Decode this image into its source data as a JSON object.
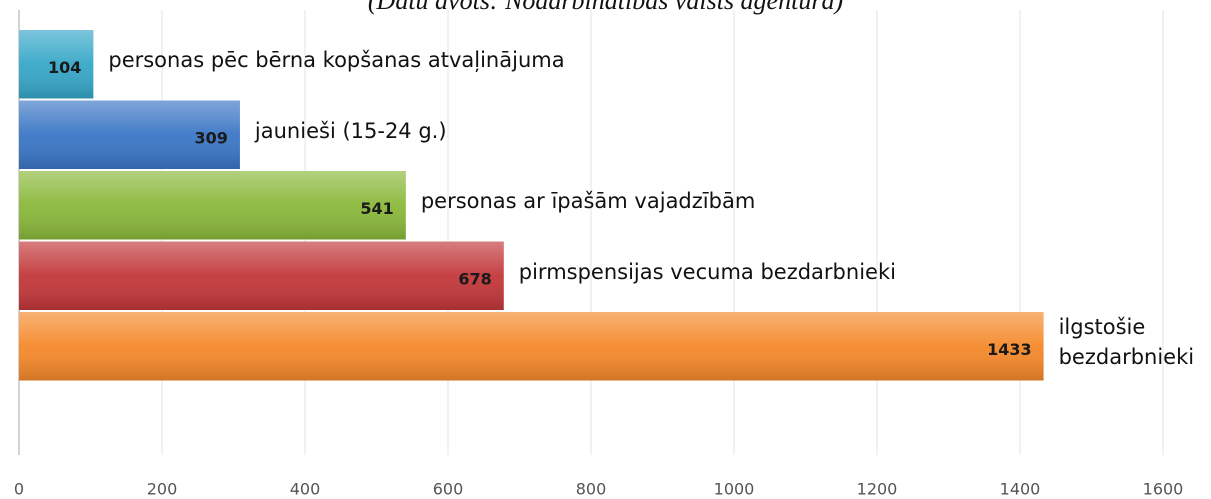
{
  "chart_data": {
    "type": "bar",
    "orientation": "horizontal",
    "subtitle": "(Datu avots: Nodarbinātības valsts aģentūra)",
    "categories": [
      "personas pēc bērna kopšanas atvaļinājuma",
      "jaunieši (15-24 g.)",
      "personas ar īpašām vajadzībām",
      "pirmspensijas vecuma bezdarbnieki",
      "ilgstošie bezdarbnieki"
    ],
    "values": [
      104,
      309,
      541,
      678,
      1433
    ],
    "colors": [
      "#36a7c8",
      "#3a76c6",
      "#8ab83a",
      "#c2373a",
      "#f5892a"
    ],
    "xlim": [
      0,
      1600
    ],
    "xticks": [
      0,
      200,
      400,
      600,
      800,
      1000,
      1200,
      1400,
      1600
    ],
    "grid": true
  }
}
